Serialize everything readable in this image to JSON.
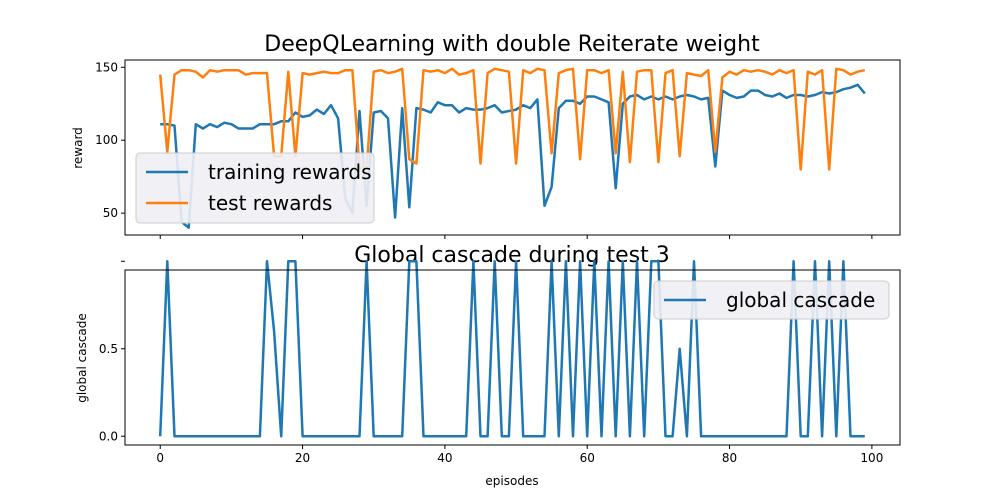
{
  "chart_data": [
    {
      "type": "line",
      "title": "DeepQLearning with double Reiterate weight",
      "xlabel": "",
      "ylabel": "reward",
      "xlim": [
        -4.95,
        103.95
      ],
      "ylim": [
        35,
        155
      ],
      "yticks": [
        50,
        100,
        150
      ],
      "xticks": [
        0,
        20,
        40,
        60,
        80,
        100
      ],
      "show_xtick_labels": false,
      "legend_position": "center-left",
      "x": [
        0,
        1,
        2,
        3,
        4,
        5,
        6,
        7,
        8,
        9,
        10,
        11,
        12,
        13,
        14,
        15,
        16,
        17,
        18,
        19,
        20,
        21,
        22,
        23,
        24,
        25,
        26,
        27,
        28,
        29,
        30,
        31,
        32,
        33,
        34,
        35,
        36,
        37,
        38,
        39,
        40,
        41,
        42,
        43,
        44,
        45,
        46,
        47,
        48,
        49,
        50,
        51,
        52,
        53,
        54,
        55,
        56,
        57,
        58,
        59,
        60,
        61,
        62,
        63,
        64,
        65,
        66,
        67,
        68,
        69,
        70,
        71,
        72,
        73,
        74,
        75,
        76,
        77,
        78,
        79,
        80,
        81,
        82,
        83,
        84,
        85,
        86,
        87,
        88,
        89,
        90,
        91,
        92,
        93,
        94,
        95,
        96,
        97,
        98,
        99
      ],
      "series": [
        {
          "name": "training rewards",
          "color": "#1f77b4",
          "values": [
            111,
            111,
            110,
            44,
            40,
            111,
            108,
            111,
            109,
            112,
            111,
            108,
            108,
            108,
            111,
            111,
            111,
            113,
            113,
            119,
            116,
            117,
            121,
            118,
            124,
            115,
            60,
            50,
            120,
            55,
            119,
            120,
            115,
            47,
            122,
            54,
            122,
            121,
            119,
            126,
            124,
            124,
            119,
            122,
            121,
            121,
            122,
            124,
            119,
            120,
            121,
            124,
            122,
            128,
            55,
            68,
            122,
            127,
            127,
            125,
            130,
            130,
            128,
            126,
            67,
            125,
            130,
            131,
            128,
            130,
            128,
            130,
            128,
            130,
            131,
            130,
            128,
            129,
            82,
            134,
            131,
            129,
            130,
            134,
            134,
            131,
            130,
            132,
            129,
            131,
            131,
            130,
            131,
            133,
            132,
            133,
            135,
            136,
            138,
            132
          ]
        },
        {
          "name": "test rewards",
          "color": "#ff7f0e",
          "values": [
            145,
            92,
            145,
            148,
            148,
            147,
            143,
            148,
            147,
            148,
            148,
            148,
            145,
            146,
            146,
            146,
            89,
            89,
            147,
            89,
            146,
            145,
            146,
            147,
            146,
            146,
            148,
            148,
            81,
            81,
            147,
            148,
            146,
            147,
            149,
            87,
            84,
            148,
            147,
            148,
            146,
            149,
            145,
            146,
            148,
            84,
            146,
            149,
            148,
            147,
            84,
            148,
            146,
            149,
            148,
            91,
            146,
            148,
            149,
            87,
            148,
            148,
            146,
            148,
            91,
            147,
            85,
            147,
            148,
            148,
            85,
            146,
            148,
            89,
            146,
            145,
            144,
            148,
            92,
            143,
            147,
            145,
            148,
            147,
            148,
            147,
            145,
            148,
            146,
            148,
            80,
            147,
            145,
            148,
            80,
            149,
            148,
            145,
            147,
            148
          ]
        }
      ]
    },
    {
      "type": "line",
      "title": "Global cascade during test 3",
      "xlabel": "episodes",
      "ylabel": "global cascade",
      "xlim": [
        -4.95,
        103.95
      ],
      "ylim": [
        -0.05,
        0.95
      ],
      "yticks": [
        0.0,
        0.5,
        1.0
      ],
      "ytick_labels": [
        "0.0",
        "0.5",
        ""
      ],
      "xticks": [
        0,
        20,
        40,
        60,
        80,
        100
      ],
      "xtick_labels": [
        "0",
        "20",
        "40",
        "60",
        "80",
        "100"
      ],
      "legend_position": "top-right",
      "x": [
        0,
        1,
        2,
        3,
        4,
        5,
        6,
        7,
        8,
        9,
        10,
        11,
        12,
        13,
        14,
        15,
        16,
        17,
        18,
        19,
        20,
        21,
        22,
        23,
        24,
        25,
        26,
        27,
        28,
        29,
        30,
        31,
        32,
        33,
        34,
        35,
        36,
        37,
        38,
        39,
        40,
        41,
        42,
        43,
        44,
        45,
        46,
        47,
        48,
        49,
        50,
        51,
        52,
        53,
        54,
        55,
        56,
        57,
        58,
        59,
        60,
        61,
        62,
        63,
        64,
        65,
        66,
        67,
        68,
        69,
        70,
        71,
        72,
        73,
        74,
        75,
        76,
        77,
        78,
        79,
        80,
        81,
        82,
        83,
        84,
        85,
        86,
        87,
        88,
        89,
        90,
        91,
        92,
        93,
        94,
        95,
        96,
        97,
        98,
        99
      ],
      "series": [
        {
          "name": "global cascade",
          "color": "#1f77b4",
          "values": [
            0,
            1,
            0,
            0,
            0,
            0,
            0,
            0,
            0,
            0,
            0,
            0,
            0,
            0,
            0,
            1,
            0.6,
            0,
            1,
            1,
            0,
            0,
            0,
            0,
            0,
            0,
            0,
            0,
            0,
            1,
            0,
            0,
            0,
            0,
            0,
            1,
            1,
            0,
            0,
            0,
            0,
            0,
            0,
            0,
            1,
            0,
            0,
            1,
            0,
            0,
            1,
            0,
            0,
            0,
            0,
            1,
            0,
            1,
            0,
            1,
            0,
            1,
            0,
            1,
            0,
            1,
            0,
            1,
            0,
            1,
            1,
            0,
            0,
            0.5,
            0,
            1,
            0,
            0,
            0,
            0,
            0,
            0,
            0,
            0,
            0,
            0,
            0,
            0,
            0,
            1,
            0,
            0,
            1,
            0,
            1,
            0,
            1,
            0,
            0,
            0
          ]
        }
      ]
    }
  ]
}
